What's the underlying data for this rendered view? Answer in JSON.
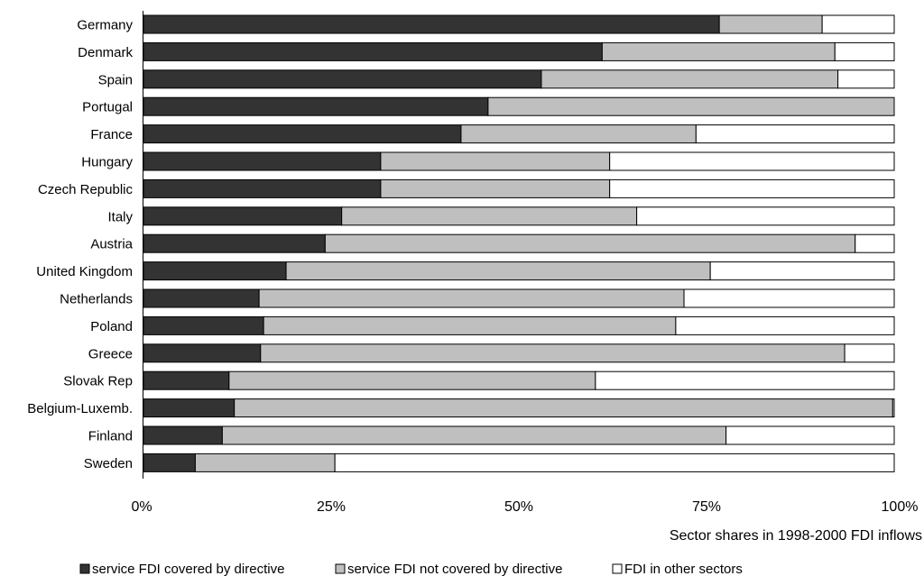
{
  "chart_data": {
    "type": "bar",
    "orientation": "horizontal",
    "stacked": true,
    "percent": true,
    "categories": [
      "Germany",
      "Denmark",
      "Spain",
      "Portugal",
      "France",
      "Hungary",
      "Czech Republic",
      "Italy",
      "Austria",
      "United Kingdom",
      "Netherlands",
      "Poland",
      "Greece",
      "Slovak Rep",
      "Belgium-Luxemb.",
      "Finland",
      "Sweden"
    ],
    "series": [
      {
        "name": "service FDI covered by directive",
        "color": "#333333",
        "values": [
          76.7,
          61.1,
          53.0,
          45.9,
          42.3,
          31.6,
          31.6,
          26.4,
          24.2,
          19.0,
          15.4,
          16.0,
          15.6,
          11.4,
          12.1,
          10.5,
          6.9
        ]
      },
      {
        "name": "service FDI not covered by directive",
        "color": "#bfbfbf",
        "values": [
          13.7,
          31.0,
          39.5,
          54.1,
          31.3,
          30.5,
          30.5,
          39.3,
          70.6,
          56.5,
          56.6,
          54.9,
          77.8,
          48.8,
          87.7,
          67.1,
          18.6
        ]
      },
      {
        "name": "FDI in other sectors",
        "color": "#ffffff",
        "values": [
          9.6,
          7.9,
          7.5,
          0.0,
          26.4,
          37.9,
          37.9,
          34.3,
          5.2,
          24.5,
          28.0,
          29.1,
          6.6,
          39.8,
          0.2,
          22.4,
          74.5
        ]
      }
    ],
    "x_ticks": [
      "0%",
      "25%",
      "50%",
      "75%",
      "100%"
    ],
    "xlim": [
      0,
      100
    ],
    "xlabel": "Sector shares in 1998-2000 FDI inflows",
    "title": "",
    "grid": false,
    "legend_position": "bottom"
  }
}
